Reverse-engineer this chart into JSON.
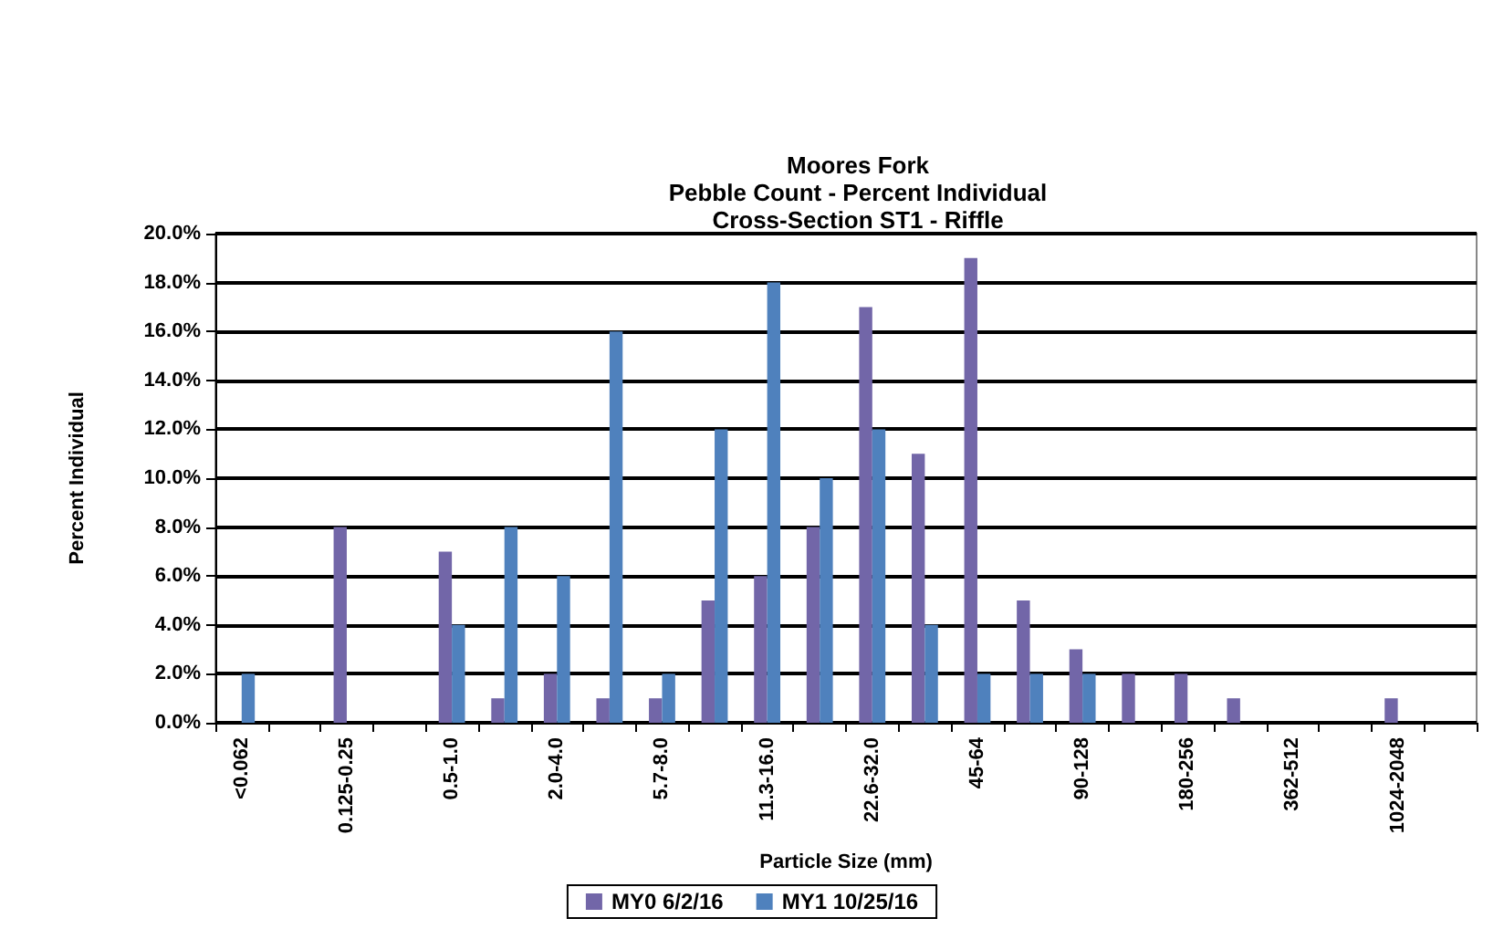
{
  "chart_data": {
    "type": "bar",
    "title": "Moores Fork\nPebble Count - Percent Individual\nCross-Section ST1 - Riffle",
    "xlabel": "Particle Size (mm)",
    "ylabel": "Percent Individual",
    "categories": [
      "<0.062",
      null,
      "0.125-0.25",
      null,
      "0.5-1.0",
      null,
      "2.0-4.0",
      null,
      "5.7-8.0",
      null,
      "11.3-16.0",
      null,
      "22.6-32.0",
      null,
      "45-64",
      null,
      "90-128",
      null,
      "180-256",
      null,
      "362-512",
      null,
      "1024-2048",
      null
    ],
    "series": [
      {
        "name": "MY0 6/2/16",
        "color": "#7266a8",
        "values": [
          0,
          0,
          8,
          0,
          7,
          1,
          2,
          1,
          1,
          5,
          6,
          8,
          17,
          11,
          19,
          5,
          3,
          2,
          2,
          1,
          0,
          0,
          1,
          0
        ]
      },
      {
        "name": "MY1 10/25/16",
        "color": "#4f81bd",
        "values": [
          2,
          0,
          0,
          0,
          4,
          8,
          6,
          16,
          2,
          12,
          18,
          10,
          12,
          4,
          2,
          2,
          2,
          0,
          0,
          0,
          0,
          0,
          0,
          0
        ]
      }
    ],
    "ylim": [
      0,
      20
    ],
    "yticks": [
      {
        "value": 0,
        "label": "0.0%"
      },
      {
        "value": 2,
        "label": "2.0%"
      },
      {
        "value": 4,
        "label": "4.0%"
      },
      {
        "value": 6,
        "label": "6.0%"
      },
      {
        "value": 8,
        "label": "8.0%"
      },
      {
        "value": 10,
        "label": "10.0%"
      },
      {
        "value": 12,
        "label": "12.0%"
      },
      {
        "value": 14,
        "label": "14.0%"
      },
      {
        "value": 16,
        "label": "16.0%"
      },
      {
        "value": 18,
        "label": "18.0%"
      },
      {
        "value": 20,
        "label": "20.0%"
      }
    ],
    "grid": "y",
    "legend": "bottom"
  }
}
